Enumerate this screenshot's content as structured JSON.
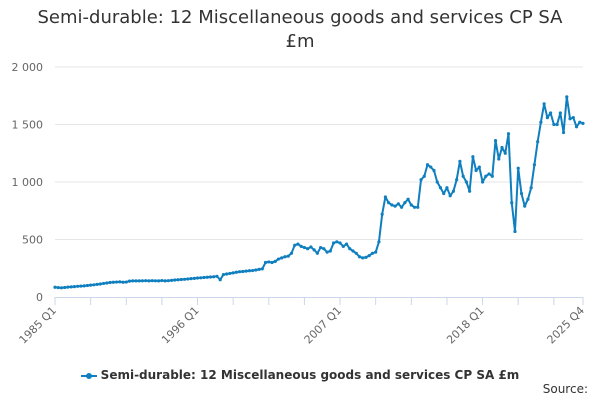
{
  "chart_data": {
    "type": "line",
    "title_lines": [
      "Semi-durable: 12 Miscellaneous goods and services CP SA",
      "£m"
    ],
    "xlabel": "",
    "ylabel": "",
    "ylim": [
      0,
      2000
    ],
    "y_ticks": [
      0,
      500,
      1000,
      1500,
      2000
    ],
    "y_tick_labels": [
      "0",
      "500",
      "1 000",
      "1 500",
      "2 000"
    ],
    "x_start": "1985 Q1",
    "x_end": "2025 Q4",
    "x_tick_labels": [
      "1985 Q1",
      "1996 Q1",
      "2007 Q1",
      "2018 Q1",
      "2025 Q4"
    ],
    "x_tick_index": [
      0,
      44,
      88,
      132,
      163
    ],
    "grid": true,
    "legend_position": "bottom",
    "series": [
      {
        "name": "Semi-durable: 12 Miscellaneous goods and services CP SA £m",
        "color": "#0f7fbf",
        "values": [
          85,
          82,
          80,
          83,
          86,
          88,
          90,
          93,
          95,
          97,
          100,
          103,
          106,
          110,
          113,
          118,
          122,
          126,
          128,
          130,
          132,
          128,
          130,
          138,
          140,
          140,
          140,
          141,
          142,
          140,
          142,
          141,
          140,
          143,
          140,
          142,
          145,
          148,
          150,
          152,
          154,
          157,
          160,
          162,
          165,
          167,
          170,
          172,
          174,
          176,
          180,
          150,
          195,
          200,
          205,
          210,
          215,
          220,
          222,
          225,
          228,
          230,
          235,
          240,
          245,
          300,
          305,
          300,
          310,
          330,
          340,
          350,
          355,
          380,
          450,
          460,
          440,
          430,
          420,
          435,
          410,
          380,
          430,
          420,
          390,
          400,
          470,
          480,
          470,
          440,
          460,
          420,
          400,
          380,
          350,
          340,
          345,
          360,
          380,
          390,
          480,
          720,
          870,
          820,
          800,
          790,
          810,
          780,
          820,
          850,
          800,
          780,
          780,
          1020,
          1050,
          1150,
          1130,
          1100,
          1000,
          950,
          900,
          950,
          880,
          920,
          1020,
          1180,
          1050,
          1000,
          920,
          1220,
          1100,
          1130,
          1000,
          1050,
          1070,
          1050,
          1360,
          1200,
          1300,
          1250,
          1420,
          820,
          570,
          1120,
          900,
          790,
          850,
          950,
          1150,
          1350,
          1520,
          1680,
          1560,
          1600,
          1500,
          1500,
          1600,
          1430,
          1740,
          1550,
          1560,
          1480,
          1520,
          1510
        ]
      }
    ]
  },
  "legend": {
    "label": "Semi-durable: 12 Miscellaneous goods and services CP SA £m"
  },
  "footer": {
    "source": "Source:"
  }
}
